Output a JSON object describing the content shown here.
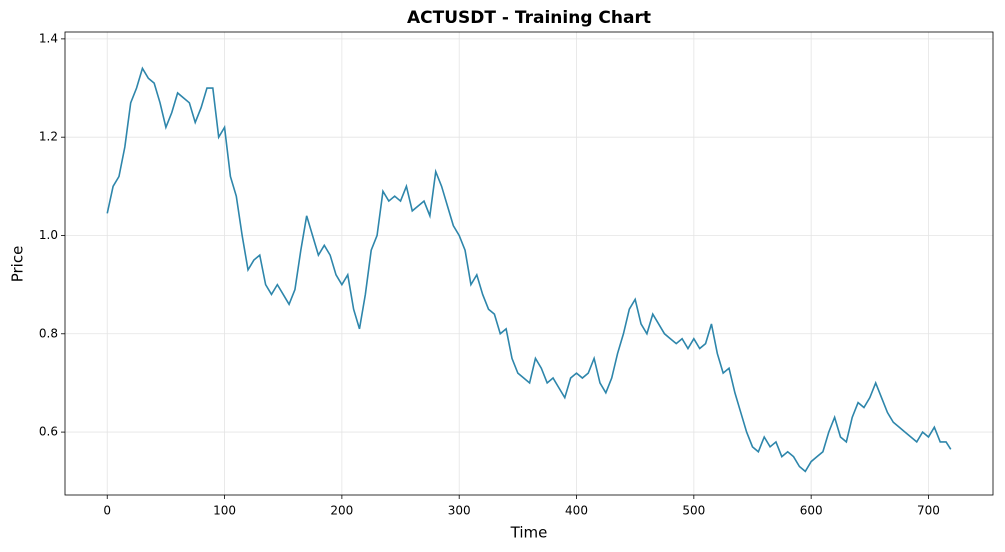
{
  "chart_data": {
    "type": "line",
    "title": "ACTUSDT - Training Chart",
    "x_label": "Time",
    "y_label": "Price",
    "x": [
      0,
      5,
      10,
      15,
      20,
      25,
      30,
      35,
      40,
      45,
      50,
      55,
      60,
      65,
      70,
      75,
      80,
      85,
      90,
      95,
      100,
      105,
      110,
      115,
      120,
      125,
      130,
      135,
      140,
      145,
      150,
      155,
      160,
      165,
      170,
      175,
      180,
      185,
      190,
      195,
      200,
      205,
      210,
      215,
      220,
      225,
      230,
      235,
      240,
      245,
      250,
      255,
      260,
      265,
      270,
      275,
      280,
      285,
      290,
      295,
      300,
      305,
      310,
      315,
      320,
      325,
      330,
      335,
      340,
      345,
      350,
      355,
      360,
      365,
      370,
      375,
      380,
      385,
      390,
      395,
      400,
      405,
      410,
      415,
      420,
      425,
      430,
      435,
      440,
      445,
      450,
      455,
      460,
      465,
      470,
      475,
      480,
      485,
      490,
      495,
      500,
      505,
      510,
      515,
      520,
      525,
      530,
      535,
      540,
      545,
      550,
      555,
      560,
      565,
      570,
      575,
      580,
      585,
      590,
      595,
      600,
      605,
      610,
      615,
      620,
      625,
      630,
      635,
      640,
      645,
      650,
      655,
      660,
      665,
      670,
      675,
      680,
      685,
      690,
      695,
      700,
      705,
      710,
      715,
      719
    ],
    "series": [
      {
        "name": "Price",
        "color": "#2e86ab",
        "values": [
          1.045,
          1.1,
          1.12,
          1.18,
          1.27,
          1.3,
          1.34,
          1.32,
          1.31,
          1.27,
          1.22,
          1.25,
          1.29,
          1.28,
          1.27,
          1.23,
          1.26,
          1.3,
          1.3,
          1.2,
          1.22,
          1.12,
          1.08,
          1.0,
          0.93,
          0.95,
          0.96,
          0.9,
          0.88,
          0.9,
          0.88,
          0.86,
          0.89,
          0.97,
          1.04,
          1.0,
          0.96,
          0.98,
          0.96,
          0.92,
          0.9,
          0.92,
          0.85,
          0.81,
          0.88,
          0.97,
          1.0,
          1.09,
          1.07,
          1.08,
          1.07,
          1.1,
          1.05,
          1.06,
          1.07,
          1.04,
          1.13,
          1.1,
          1.06,
          1.02,
          1.0,
          0.97,
          0.9,
          0.92,
          0.88,
          0.85,
          0.84,
          0.8,
          0.81,
          0.75,
          0.72,
          0.71,
          0.7,
          0.75,
          0.73,
          0.7,
          0.71,
          0.69,
          0.67,
          0.71,
          0.72,
          0.71,
          0.72,
          0.75,
          0.7,
          0.68,
          0.71,
          0.76,
          0.8,
          0.85,
          0.87,
          0.82,
          0.8,
          0.84,
          0.82,
          0.8,
          0.79,
          0.78,
          0.79,
          0.77,
          0.79,
          0.77,
          0.78,
          0.82,
          0.76,
          0.72,
          0.73,
          0.68,
          0.64,
          0.6,
          0.57,
          0.56,
          0.59,
          0.57,
          0.58,
          0.55,
          0.56,
          0.55,
          0.53,
          0.52,
          0.54,
          0.55,
          0.56,
          0.6,
          0.63,
          0.59,
          0.58,
          0.63,
          0.66,
          0.65,
          0.67,
          0.7,
          0.67,
          0.64,
          0.62,
          0.61,
          0.6,
          0.59,
          0.58,
          0.6,
          0.59,
          0.61,
          0.58,
          0.58,
          0.565
        ]
      }
    ],
    "xlim": [
      -36,
      755
    ],
    "ylim": [
      0.472,
      1.414
    ],
    "xticks": [
      0,
      100,
      200,
      300,
      400,
      500,
      600,
      700
    ],
    "yticks": [
      0.6,
      0.8,
      {
        "value": 1,
        "label": "1.0"
      },
      1.2,
      1.4
    ],
    "grid": true
  }
}
